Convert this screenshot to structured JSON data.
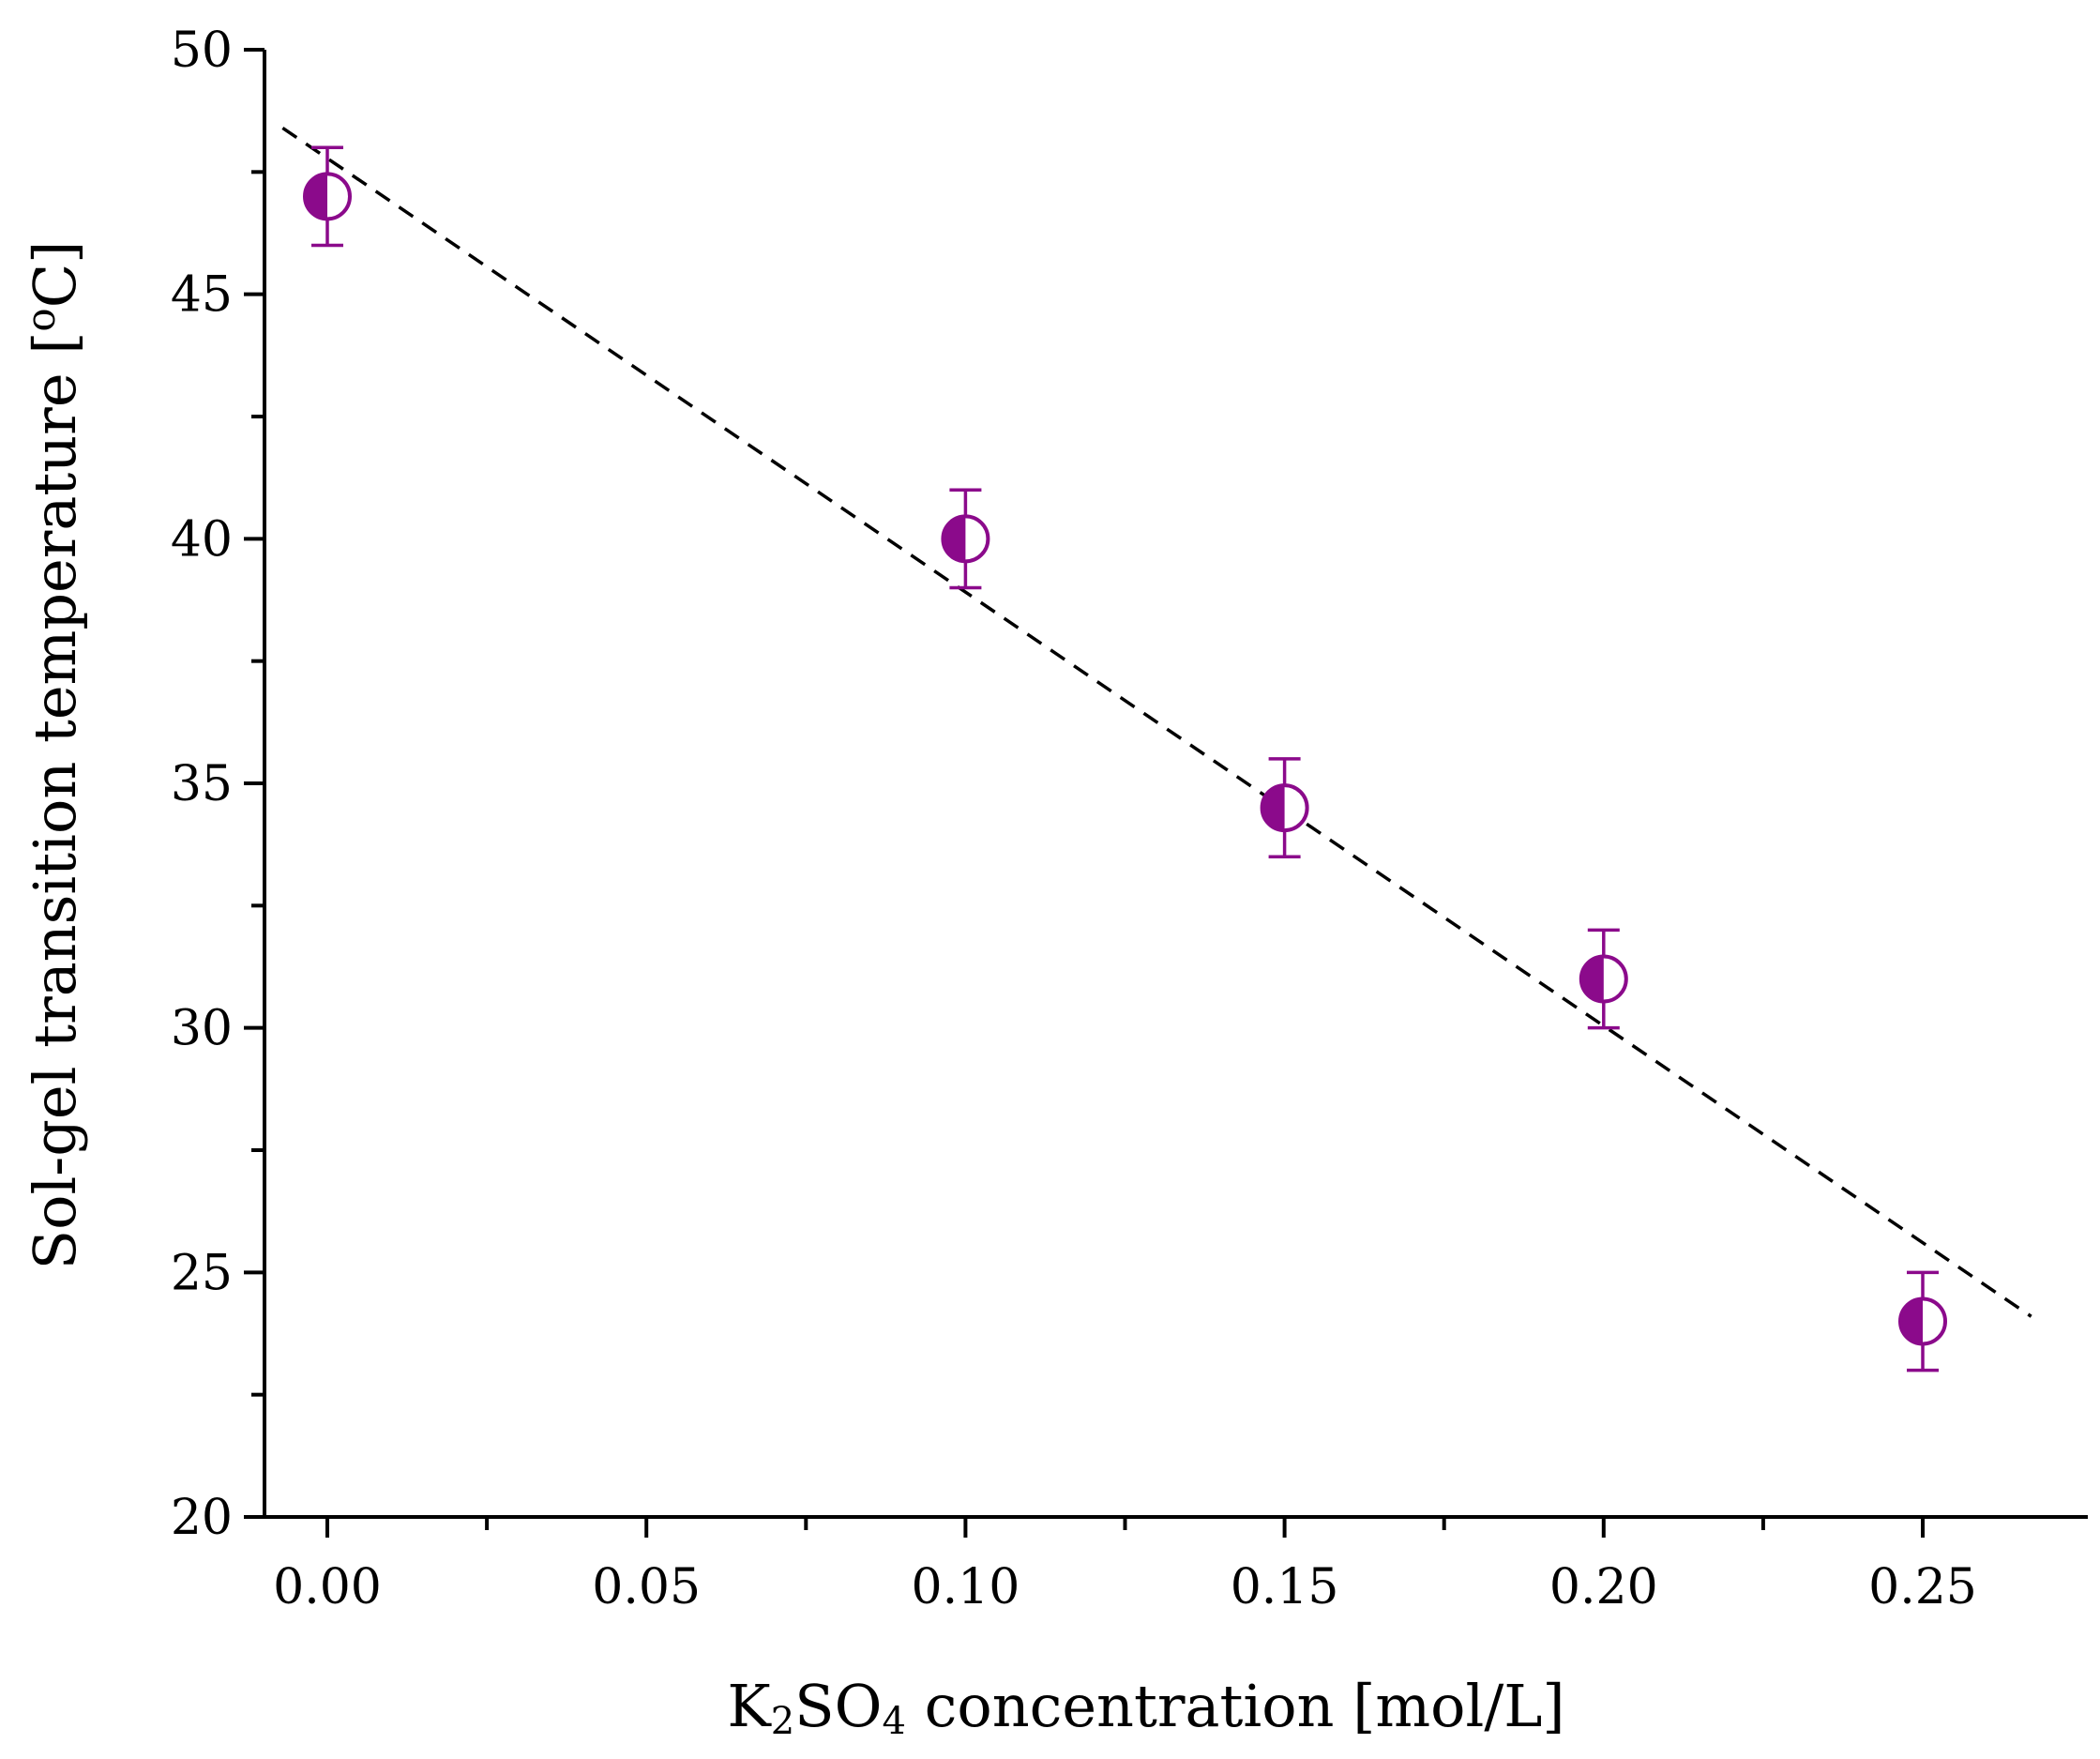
{
  "chart_data": {
    "type": "scatter",
    "title": "",
    "xlabel": "K2SO4 concentration [mol/L]",
    "xlabel_parts": {
      "a": "K",
      "sub1": "2",
      "b": "SO",
      "sub2": "4",
      "c": " concentration [mol/L]"
    },
    "ylabel": "Sol-gel transition temperature [°C]",
    "ylabel_parts": {
      "a": "Sol-gel transition temperature [",
      "sup": "o",
      "b": "C]"
    },
    "xlim": [
      -0.01,
      0.275
    ],
    "ylim": [
      20,
      50
    ],
    "x_major_ticks": [
      0.0,
      0.05,
      0.1,
      0.15,
      0.2,
      0.25
    ],
    "x_tick_labels": [
      "0.00",
      "0.05",
      "0.10",
      "0.15",
      "0.20",
      "0.25"
    ],
    "x_minor_ticks": [
      0.025,
      0.075,
      0.125,
      0.175,
      0.225
    ],
    "y_major_ticks": [
      20,
      25,
      30,
      35,
      40,
      45,
      50
    ],
    "y_tick_labels": [
      "20",
      "25",
      "30",
      "35",
      "40",
      "45",
      "50"
    ],
    "y_minor_ticks": [
      22.5,
      27.5,
      32.5,
      37.5,
      42.5,
      47.5
    ],
    "series": [
      {
        "x": [
          0.0,
          0.1,
          0.15,
          0.2,
          0.25
        ],
        "y": [
          47,
          40,
          34.5,
          31,
          24
        ],
        "error": [
          1,
          1,
          1,
          1,
          1
        ],
        "marker": "half-filled-circle",
        "color": "#8b0a8b"
      }
    ],
    "fit_line": {
      "style": "dashed",
      "color": "#000000",
      "x": [
        -0.007,
        0.267
      ],
      "y": [
        48.4,
        24.1
      ]
    },
    "grid": false,
    "legend": "none"
  }
}
